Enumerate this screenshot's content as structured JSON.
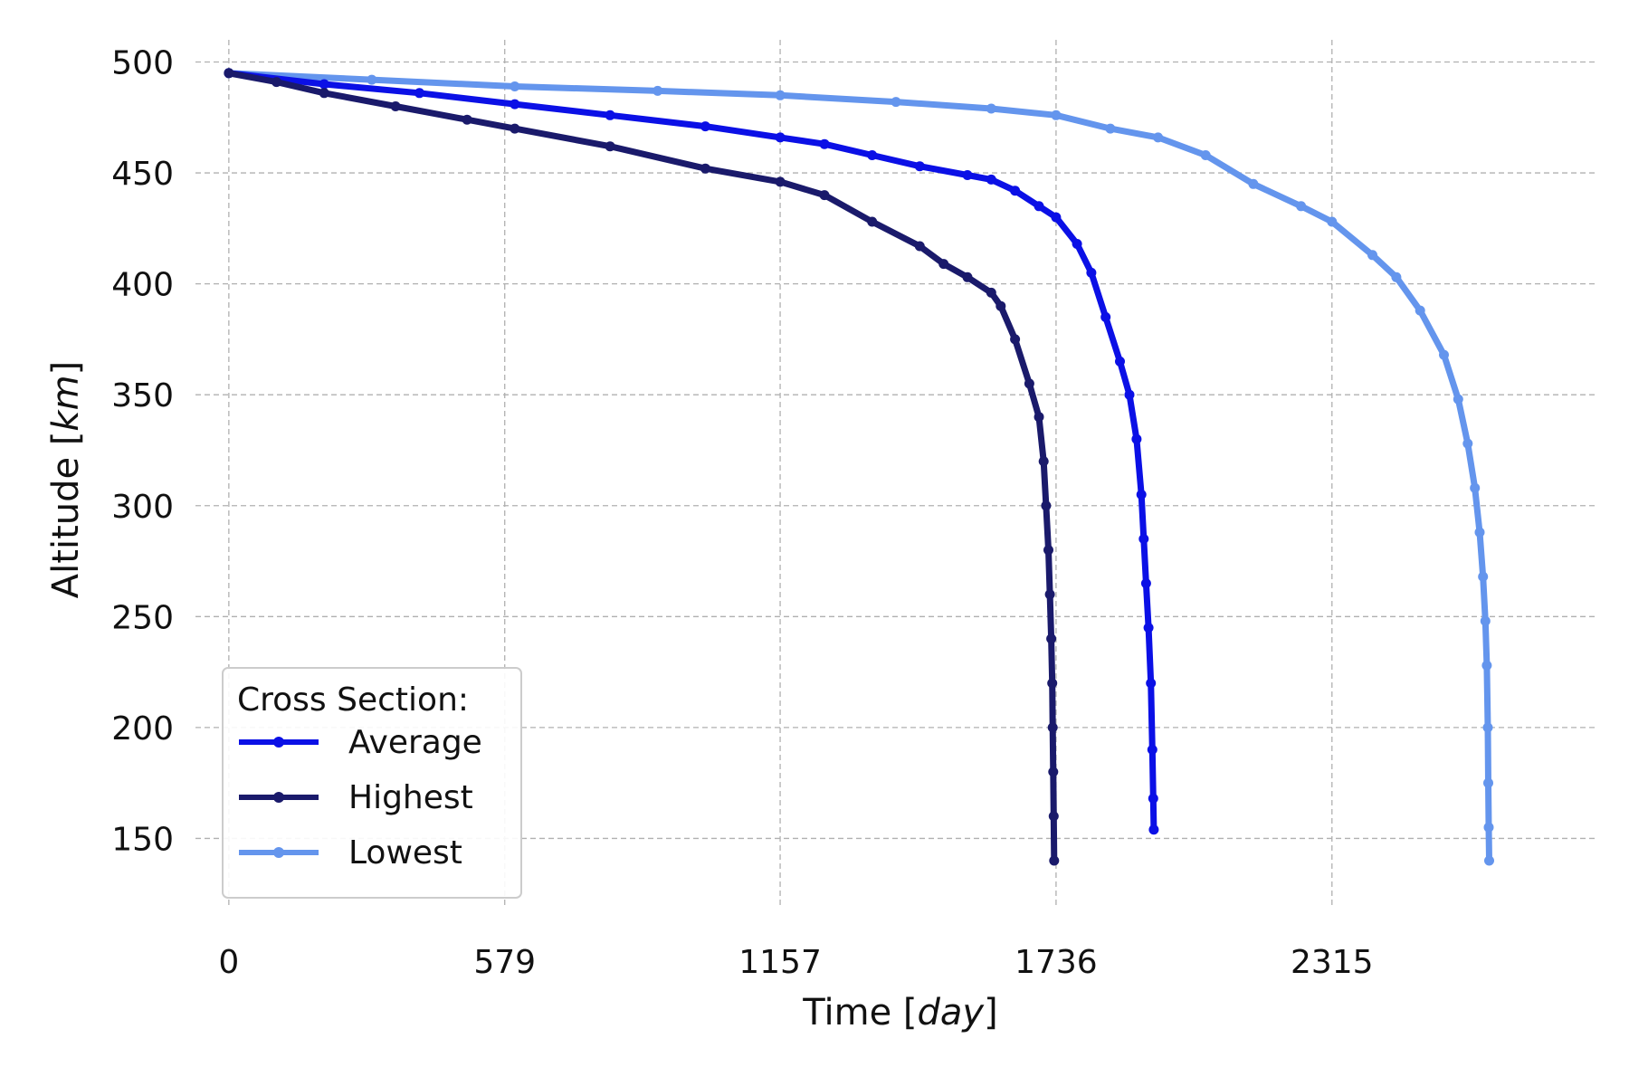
{
  "chart_data": {
    "type": "line",
    "title": "",
    "xlabel_text": "Time [",
    "xlabel_unit": "day",
    "xlabel_close": "]",
    "ylabel_text": "Altitude [",
    "ylabel_unit": "km",
    "ylabel_close": "]",
    "xlim": [
      -70,
      2870
    ],
    "ylim": [
      120,
      510
    ],
    "x_ticks": [
      0,
      579,
      1157,
      1736,
      2315
    ],
    "x_tick_labels": [
      "0",
      "579",
      "1157",
      "1736",
      "2315"
    ],
    "y_ticks": [
      150,
      200,
      250,
      300,
      350,
      400,
      450,
      500
    ],
    "y_tick_labels": [
      "150",
      "200",
      "250",
      "300",
      "350",
      "400",
      "450",
      "500"
    ],
    "grid": true,
    "legend": {
      "title": "Cross Section:",
      "position": "lower-left"
    },
    "series": [
      {
        "name": "Average",
        "color": "#0b10e6",
        "points": [
          [
            0,
            495
          ],
          [
            200,
            490
          ],
          [
            400,
            486
          ],
          [
            600,
            481
          ],
          [
            800,
            476
          ],
          [
            1000,
            471
          ],
          [
            1157,
            466
          ],
          [
            1250,
            463
          ],
          [
            1350,
            458
          ],
          [
            1450,
            453
          ],
          [
            1550,
            449
          ],
          [
            1600,
            447
          ],
          [
            1650,
            442
          ],
          [
            1700,
            435
          ],
          [
            1736,
            430
          ],
          [
            1780,
            418
          ],
          [
            1810,
            405
          ],
          [
            1840,
            385
          ],
          [
            1870,
            365
          ],
          [
            1890,
            350
          ],
          [
            1905,
            330
          ],
          [
            1915,
            305
          ],
          [
            1920,
            285
          ],
          [
            1925,
            265
          ],
          [
            1930,
            245
          ],
          [
            1935,
            220
          ],
          [
            1938,
            190
          ],
          [
            1940,
            168
          ],
          [
            1941,
            154
          ]
        ]
      },
      {
        "name": "Highest",
        "color": "#1a1a6b",
        "points": [
          [
            0,
            495
          ],
          [
            100,
            491
          ],
          [
            200,
            486
          ],
          [
            350,
            480
          ],
          [
            500,
            474
          ],
          [
            600,
            470
          ],
          [
            800,
            462
          ],
          [
            1000,
            452
          ],
          [
            1157,
            446
          ],
          [
            1250,
            440
          ],
          [
            1350,
            428
          ],
          [
            1450,
            417
          ],
          [
            1500,
            409
          ],
          [
            1550,
            403
          ],
          [
            1600,
            396
          ],
          [
            1620,
            390
          ],
          [
            1650,
            375
          ],
          [
            1680,
            355
          ],
          [
            1700,
            340
          ],
          [
            1710,
            320
          ],
          [
            1715,
            300
          ],
          [
            1720,
            280
          ],
          [
            1723,
            260
          ],
          [
            1726,
            240
          ],
          [
            1728,
            220
          ],
          [
            1729,
            200
          ],
          [
            1730,
            180
          ],
          [
            1731,
            160
          ],
          [
            1732,
            140
          ]
        ]
      },
      {
        "name": "Lowest",
        "color": "#6495ed",
        "points": [
          [
            0,
            495
          ],
          [
            300,
            492
          ],
          [
            600,
            489
          ],
          [
            900,
            487
          ],
          [
            1157,
            485
          ],
          [
            1400,
            482
          ],
          [
            1600,
            479
          ],
          [
            1736,
            476
          ],
          [
            1850,
            470
          ],
          [
            1950,
            466
          ],
          [
            2050,
            458
          ],
          [
            2150,
            445
          ],
          [
            2250,
            435
          ],
          [
            2315,
            428
          ],
          [
            2400,
            413
          ],
          [
            2450,
            403
          ],
          [
            2500,
            388
          ],
          [
            2550,
            368
          ],
          [
            2580,
            348
          ],
          [
            2600,
            328
          ],
          [
            2615,
            308
          ],
          [
            2625,
            288
          ],
          [
            2632,
            268
          ],
          [
            2637,
            248
          ],
          [
            2640,
            228
          ],
          [
            2642,
            200
          ],
          [
            2643,
            175
          ],
          [
            2644,
            155
          ],
          [
            2645,
            140
          ]
        ]
      }
    ]
  }
}
